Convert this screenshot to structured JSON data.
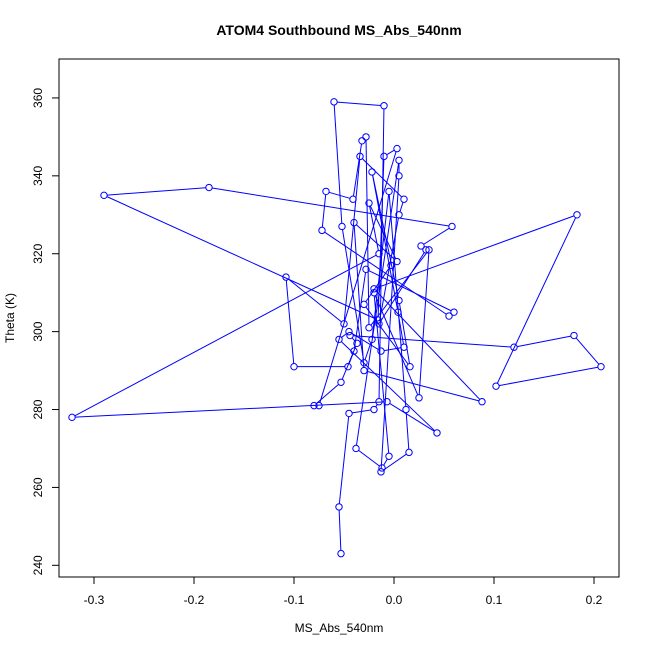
{
  "chart_data": {
    "type": "line",
    "title": "ATOM4 Southbound MS_Abs_540nm",
    "xlabel": "MS_Abs_540nm",
    "ylabel": "Theta (K)",
    "xlim": [
      -0.335,
      0.225
    ],
    "ylim": [
      237,
      370
    ],
    "xticks": [
      -0.3,
      -0.2,
      -0.1,
      0.0,
      0.1,
      0.2
    ],
    "xtick_labels": [
      "-0.3",
      "-0.2",
      "-0.1",
      "0.0",
      "0.1",
      "0.2"
    ],
    "yticks": [
      240,
      260,
      280,
      300,
      320,
      340,
      360
    ],
    "ytick_labels": [
      "240",
      "260",
      "280",
      "300",
      "320",
      "340",
      "360"
    ],
    "grid": false,
    "legend": "none",
    "colors": {
      "series": "#0000ff",
      "axes": "#000000"
    },
    "series": [
      {
        "marker": "open-circle",
        "x": [
          -0.053,
          -0.055,
          -0.045,
          -0.02,
          -0.015,
          -0.01,
          -0.06,
          -0.052,
          -0.03,
          -0.022,
          -0.005,
          0.012,
          0.015,
          -0.013,
          0.005,
          0.005,
          -0.038,
          -0.012,
          -0.005,
          -0.02,
          0.025,
          0.035,
          -0.025,
          -0.028,
          -0.032,
          -0.041,
          -0.068,
          -0.072,
          0.055,
          0.06,
          -0.028,
          -0.04,
          -0.046,
          -0.1,
          -0.108,
          -0.05,
          -0.034,
          0.01,
          0.005,
          -0.015,
          0.032,
          0.027,
          0.058,
          -0.185,
          -0.29,
          -0.016,
          -0.01,
          0.003,
          -0.075,
          -0.08,
          -0.053,
          -0.037,
          -0.044,
          0.12,
          0.18,
          0.207,
          0.102,
          0.183,
          -0.02,
          0.088,
          -0.03,
          -0.04,
          0.003,
          -0.025,
          -0.015,
          -0.322,
          -0.007,
          0.043,
          -0.055,
          -0.045,
          -0.013,
          0.01,
          0.004,
          -0.022,
          0.005,
          0.016,
          -0.03,
          -0.003
        ],
        "y": [
          243,
          255,
          279,
          280,
          282,
          358,
          359,
          327,
          292,
          298,
          336,
          280,
          269,
          264,
          340,
          344,
          270,
          265,
          268,
          310,
          283,
          321,
          301,
          350,
          349,
          334,
          336,
          326,
          304,
          305,
          316,
          295,
          291,
          291,
          314,
          302,
          345,
          334,
          330,
          302,
          321,
          322,
          327,
          337,
          335,
          303,
          345,
          347,
          281,
          281,
          287,
          297,
          299,
          296,
          299,
          291,
          286,
          330,
          311,
          282,
          290,
          328,
          318,
          333,
          320,
          278,
          282,
          274,
          298,
          300,
          295,
          296,
          305,
          341,
          308,
          291,
          307,
          317
        ]
      }
    ]
  }
}
